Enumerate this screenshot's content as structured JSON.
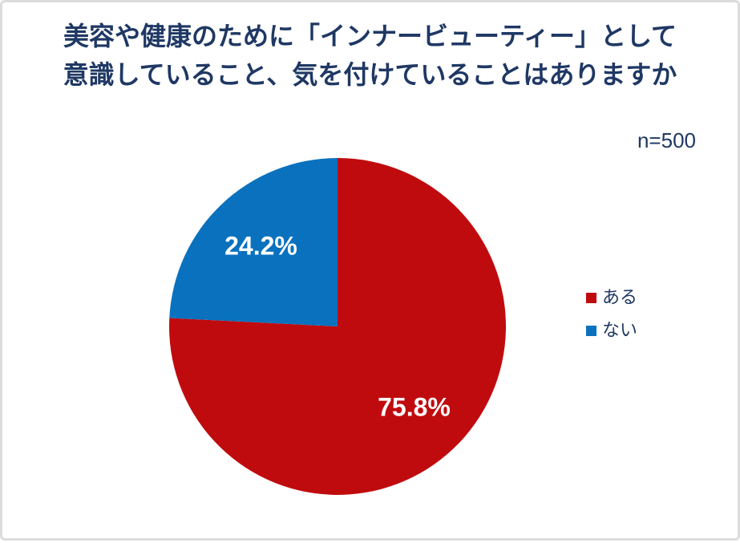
{
  "title": {
    "line1": "美容や健康のために「インナービューティー」として",
    "line2": "意識していること、気を付けていることはありますか"
  },
  "sample_size": "n=500",
  "chart_data": {
    "type": "pie",
    "title": "美容や健康のために「インナービューティー」として意識していること、気を付けていることはありますか",
    "labels": [
      "ある",
      "ない"
    ],
    "values": [
      75.8,
      24.2
    ],
    "data_labels": [
      "75.8%",
      "24.2%"
    ],
    "colors": [
      "#c00b0e",
      "#0a71be"
    ],
    "start_angle_deg": -90,
    "direction": "clockwise",
    "legend_position": "right",
    "data_label_color": "#ffffff",
    "sample_size_note": "n=500"
  },
  "colors": {
    "title_text": "#1f3864",
    "legend_text": "#1f3864",
    "frame_border": "#dcdcdc",
    "background": "#ffffff"
  }
}
